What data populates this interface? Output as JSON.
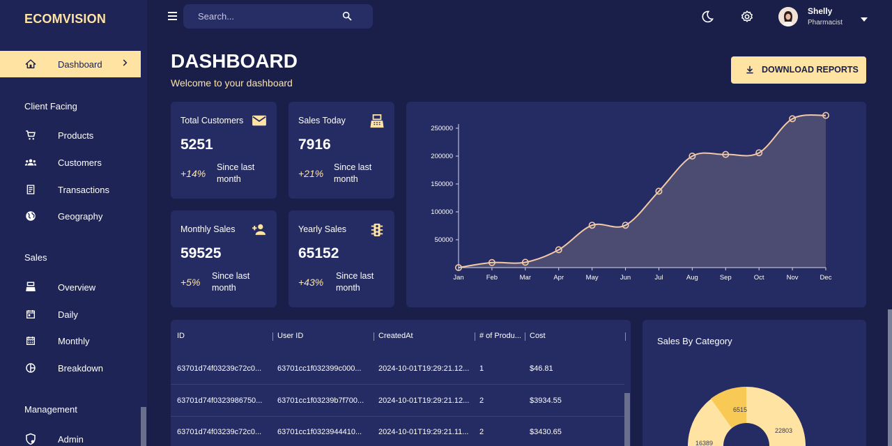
{
  "brand": "ECOMVISION",
  "sidebar": {
    "dashboard": "Dashboard",
    "sections": {
      "client_facing": "Client Facing",
      "sales": "Sales",
      "management": "Management"
    },
    "items": {
      "products": "Products",
      "customers": "Customers",
      "transactions": "Transactions",
      "geography": "Geography",
      "overview": "Overview",
      "daily": "Daily",
      "monthly": "Monthly",
      "breakdown": "Breakdown",
      "admin": "Admin"
    }
  },
  "topbar": {
    "search_placeholder": "Search...",
    "user_name": "Shelly",
    "user_role": "Pharmacist"
  },
  "header": {
    "title": "DASHBOARD",
    "subtitle": "Welcome to your dashboard",
    "download_label": "DOWNLOAD REPORTS"
  },
  "stats": {
    "total_customers": {
      "title": "Total Customers",
      "value": "5251",
      "pct": "+14%",
      "since": "Since last month",
      "icon": "email-icon"
    },
    "sales_today": {
      "title": "Sales Today",
      "value": "7916",
      "pct": "+21%",
      "since": "Since last month",
      "icon": "point-of-sale-icon"
    },
    "monthly_sales": {
      "title": "Monthly Sales",
      "value": "59525",
      "pct": "+5%",
      "since": "Since last month",
      "icon": "person-add-icon"
    },
    "yearly_sales": {
      "title": "Yearly Sales",
      "value": "65152",
      "pct": "+43%",
      "since": "Since last month",
      "icon": "traffic-icon"
    }
  },
  "chart_data": {
    "type": "area",
    "x": [
      "Jan",
      "Feb",
      "Mar",
      "Apr",
      "May",
      "Jun",
      "Jul",
      "Aug",
      "Sep",
      "Oct",
      "Nov",
      "Dec"
    ],
    "series": [
      {
        "values": [
          0,
          9000,
          9500,
          32000,
          76000,
          76000,
          137000,
          200000,
          203000,
          206000,
          267000,
          273000
        ]
      }
    ],
    "yticks": [
      50000,
      100000,
      150000,
      200000,
      250000
    ],
    "ylim": [
      0,
      270000
    ],
    "line_color": "#f3c9a6",
    "fill_color": "#4c4c72"
  },
  "table": {
    "headers": [
      "ID",
      "User ID",
      "CreatedAt",
      "# of Produ...",
      "Cost"
    ],
    "rows": [
      [
        "63701d74f03239c72c0...",
        "63701cc1f032399c000...",
        "2024-10-01T19:29:21.12...",
        "1",
        "$46.81"
      ],
      [
        "63701d74f0323986750...",
        "63701cc1f03239b7f700...",
        "2024-10-01T19:29:21.12...",
        "2",
        "$3934.55"
      ],
      [
        "63701d74f03239c72c0...",
        "63701cc1f0323944410...",
        "2024-10-01T19:29:21.11...",
        "2",
        "$3430.65"
      ]
    ]
  },
  "sales_by_category": {
    "title": "Sales By Category",
    "labels": [
      "6515",
      "22803",
      "16389"
    ],
    "colors": [
      "#f8c955",
      "#ffe3a3",
      "#fde8b0"
    ]
  }
}
